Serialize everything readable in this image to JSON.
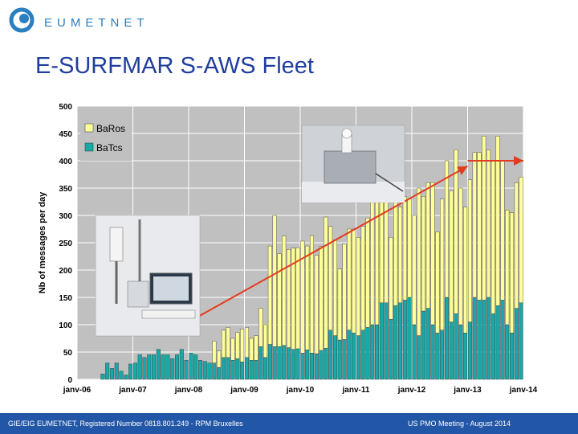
{
  "logo": {
    "text": "EUMETNET"
  },
  "slide": {
    "title": "E-SURFMAR S-AWS Fleet"
  },
  "footer": {
    "left": "GIE/EIG EUMETNET, Registered Number 0818.801.249 - RPM Bruxelles",
    "right": "US PMO  Meeting -  August 2014"
  },
  "colors": {
    "baros": "#ffff99",
    "batcs": "#1aa7a7",
    "plot_bg": "#c0c0c0",
    "trend": "#e23b1f",
    "title": "#1f3e9e",
    "footer_bg": "#2256a6"
  },
  "chart_data": {
    "type": "bar",
    "stacked": true,
    "ylabel": "Nb of messages per day",
    "xlabel": "",
    "ylim": [
      0,
      500
    ],
    "yticks": [
      0,
      50,
      100,
      150,
      200,
      250,
      300,
      350,
      400,
      450,
      500
    ],
    "xtick_labels": [
      "janv-06",
      "janv-07",
      "janv-08",
      "janv-09",
      "janv-10",
      "janv-11",
      "janv-12",
      "janv-13",
      "janv-14"
    ],
    "start_month": "janv-06",
    "grid": true,
    "legend_position": "top-left",
    "series": [
      {
        "name": "BaRos",
        "values": [
          0,
          0,
          0,
          0,
          0,
          0,
          0,
          0,
          0,
          0,
          0,
          0,
          0,
          0,
          0,
          0,
          0,
          0,
          0,
          0,
          0,
          0,
          0,
          0,
          0,
          0,
          0,
          0,
          0,
          40,
          30,
          50,
          55,
          40,
          48,
          60,
          55,
          40,
          45,
          70,
          60,
          180,
          240,
          170,
          200,
          180,
          185,
          185,
          205,
          190,
          215,
          180,
          190,
          240,
          190,
          175,
          130,
          175,
          185,
          190,
          180,
          190,
          200,
          270,
          260,
          195,
          195,
          150,
          200,
          175,
          190,
          180,
          200,
          270,
          210,
          230,
          260,
          185,
          240,
          250,
          240,
          300,
          250,
          230,
          260,
          265,
          270,
          300,
          270,
          280,
          310,
          255,
          210,
          220,
          230,
          230
        ]
      },
      {
        "name": "BaTcs",
        "values": [
          0,
          0,
          0,
          0,
          0,
          10,
          30,
          20,
          30,
          15,
          8,
          28,
          30,
          45,
          40,
          45,
          45,
          55,
          45,
          45,
          38,
          45,
          55,
          35,
          48,
          45,
          35,
          33,
          30,
          30,
          22,
          40,
          40,
          35,
          38,
          32,
          40,
          35,
          35,
          60,
          40,
          64,
          60,
          60,
          62,
          58,
          55,
          56,
          48,
          54,
          48,
          47,
          53,
          57,
          90,
          80,
          72,
          73,
          90,
          85,
          80,
          90,
          95,
          100,
          100,
          140,
          140,
          110,
          135,
          140,
          145,
          150,
          100,
          80,
          125,
          130,
          100,
          85,
          90,
          150,
          105,
          120,
          100,
          85,
          105,
          150,
          145,
          145,
          150,
          120,
          135,
          145,
          100,
          85,
          130,
          140
        ]
      }
    ],
    "trend_lines": [
      {
        "from": {
          "x": "janv-08",
          "y": 105
        },
        "to": {
          "x": "janv-13",
          "y": 390
        }
      },
      {
        "from": {
          "x": "janv-13",
          "y": 400
        },
        "to": {
          "x": "janv-14",
          "y": 400
        }
      }
    ]
  }
}
